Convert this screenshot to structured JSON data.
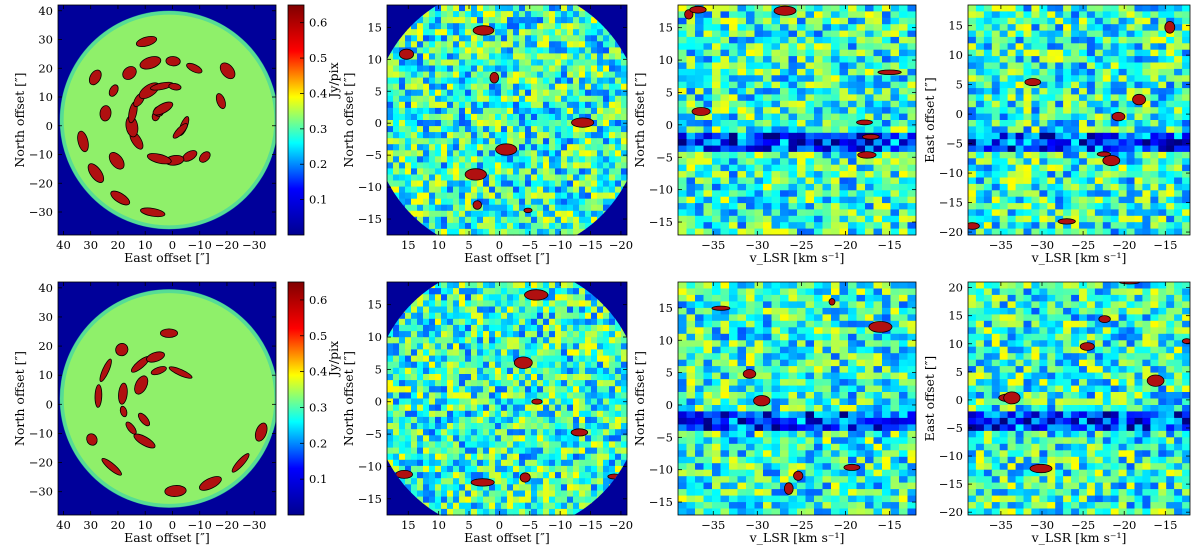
{
  "colorbar_label": "Jy/pix",
  "colorbar_ticks": [
    "0.1",
    "0.2",
    "0.3",
    "0.4",
    "0.5",
    "0.6"
  ],
  "colors": {
    "background": "#00009a",
    "field": "#8ff06a",
    "contour_fill": "#b01010",
    "contour_line": "#000000",
    "colormap": [
      "#00008f",
      "#0000ff",
      "#00ffff",
      "#ffff00",
      "#ff0000",
      "#800000"
    ]
  },
  "chart_data": [
    {
      "panel": "top-1",
      "type": "heatmap",
      "xlabel": "East offset [″]",
      "ylabel": "North offset [″]",
      "xlim": [
        42,
        -38
      ],
      "ylim": [
        -38,
        42
      ],
      "x_ticks": [
        40,
        30,
        20,
        10,
        0,
        -10,
        -20,
        -30
      ],
      "y_ticks": [
        -30,
        -20,
        -10,
        0,
        10,
        20,
        30,
        40
      ],
      "color_range": [
        0,
        0.65
      ],
      "colormap": "jet",
      "colorbar": true,
      "description_values": {
        "background_level_jy_per_pix": 0.4,
        "shell_peak_jy_per_pix": 0.6
      }
    },
    {
      "panel": "top-2",
      "type": "heatmap",
      "xlabel": "East offset [″]",
      "ylabel": "North offset [″]",
      "xlim": [
        18.5,
        -21
      ],
      "ylim": [
        -17.5,
        18.5
      ],
      "x_ticks": [
        15,
        10,
        5,
        0,
        -5,
        -10,
        -15,
        -20
      ],
      "y_ticks": [
        -15,
        -10,
        -5,
        0,
        5,
        10,
        15
      ]
    },
    {
      "panel": "top-3",
      "type": "heatmap",
      "xlabel": "v_LSR [km s⁻¹]",
      "ylabel": "North offset [″]",
      "xlim": [
        -39,
        -12
      ],
      "ylim": [
        -17,
        18.5
      ],
      "x_ticks": [
        -35,
        -30,
        -25,
        -20,
        -15
      ],
      "y_ticks": [
        -15,
        -10,
        -5,
        0,
        5,
        10,
        15
      ]
    },
    {
      "panel": "top-4",
      "type": "heatmap",
      "xlabel": "v_LSR [km s⁻¹]",
      "ylabel": "East offset [″]",
      "xlim": [
        -39,
        -12
      ],
      "ylim": [
        -20.5,
        18.5
      ],
      "x_ticks": [
        -35,
        -30,
        -25,
        -20,
        -15
      ],
      "y_ticks": [
        -20,
        -15,
        -10,
        -5,
        0,
        5,
        10,
        15
      ]
    },
    {
      "panel": "bottom-1",
      "type": "heatmap",
      "xlabel": "East offset [″]",
      "ylabel": "North offset [″]",
      "xlim": [
        42,
        -38
      ],
      "ylim": [
        -38,
        42
      ],
      "x_ticks": [
        40,
        30,
        20,
        10,
        0,
        -10,
        -20,
        -30
      ],
      "y_ticks": [
        -30,
        -20,
        -10,
        0,
        10,
        20,
        30,
        40
      ],
      "color_range": [
        0,
        0.65
      ],
      "colormap": "jet",
      "colorbar": true
    },
    {
      "panel": "bottom-2",
      "type": "heatmap",
      "xlabel": "East offset [″]",
      "ylabel": "North offset [″]",
      "xlim": [
        18.5,
        -21
      ],
      "ylim": [
        -17.5,
        18.5
      ],
      "x_ticks": [
        15,
        10,
        5,
        0,
        -5,
        -10,
        -15,
        -20
      ],
      "y_ticks": [
        -15,
        -10,
        -5,
        0,
        5,
        10,
        15
      ]
    },
    {
      "panel": "bottom-3",
      "type": "heatmap",
      "xlabel": "v_LSR [km s⁻¹]",
      "ylabel": "North offset [″]",
      "xlim": [
        -39,
        -12
      ],
      "ylim": [
        -17,
        19
      ],
      "x_ticks": [
        -35,
        -30,
        -25,
        -20,
        -15
      ],
      "y_ticks": [
        -15,
        -10,
        -5,
        0,
        5,
        10,
        15
      ]
    },
    {
      "panel": "bottom-4",
      "type": "heatmap",
      "xlabel": "v_LSR [km s⁻¹]",
      "ylabel": "East offset [″]",
      "xlim": [
        -39,
        -12
      ],
      "ylim": [
        -20.5,
        21
      ],
      "x_ticks": [
        -35,
        -30,
        -25,
        -20,
        -15
      ],
      "y_ticks": [
        -20,
        -15,
        -10,
        -5,
        0,
        5,
        10,
        15,
        20
      ]
    }
  ]
}
